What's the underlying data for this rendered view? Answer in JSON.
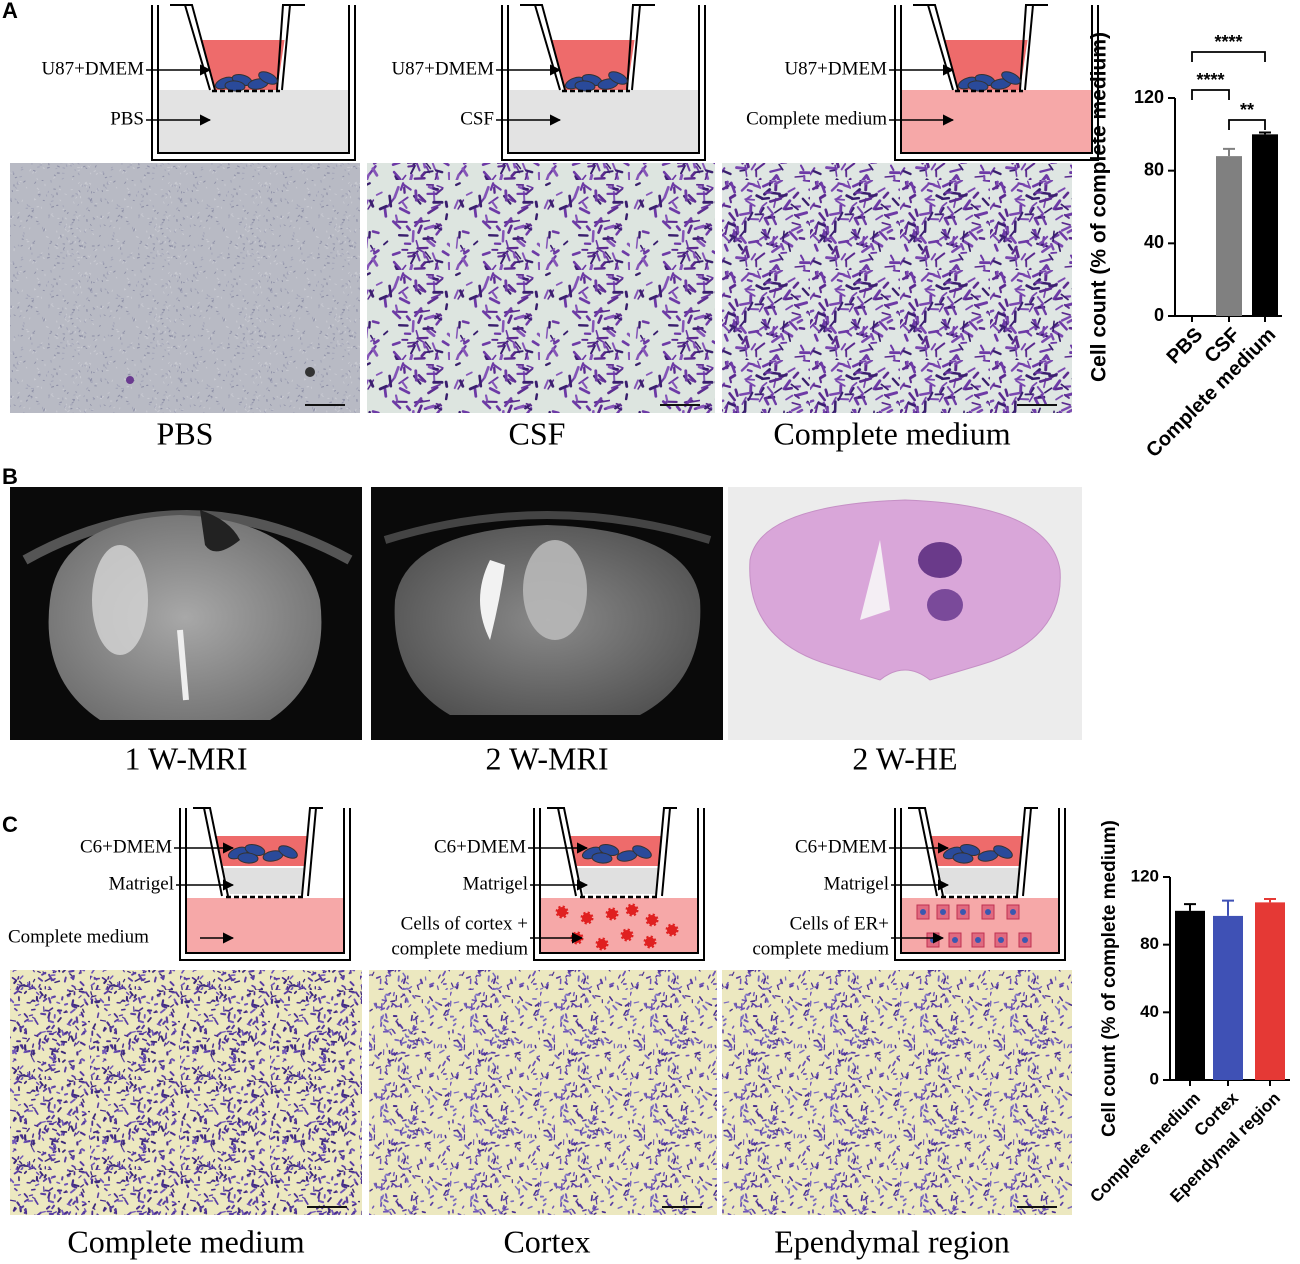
{
  "panels": [
    {
      "letter": "A",
      "diagrams": [
        {
          "top": "U87+DMEM",
          "bottom": [
            "PBS"
          ]
        },
        {
          "top": "U87+DMEM",
          "bottom": [
            "CSF"
          ]
        },
        {
          "top": "U87+DMEM",
          "bottom": [
            "Complete medium"
          ]
        }
      ],
      "captions": [
        "PBS",
        "CSF",
        "Complete medium"
      ]
    },
    {
      "letter": "B",
      "captions": [
        "1 W-MRI",
        "2 W-MRI",
        "2 W-HE"
      ]
    },
    {
      "letter": "C",
      "diagrams": [
        {
          "top": "C6+DMEM",
          "middle": "Matrigel",
          "bottom": [
            "Complete medium"
          ]
        },
        {
          "top": "C6+DMEM",
          "middle": "Matrigel",
          "bottom": [
            "Cells of cortex +",
            "complete medium"
          ]
        },
        {
          "top": "C6+DMEM",
          "middle": "Matrigel",
          "bottom": [
            "Cells of ER+",
            "complete medium"
          ]
        }
      ],
      "captions": [
        "Complete medium",
        "Cortex",
        "Ependymal region"
      ]
    }
  ],
  "chart_data": [
    {
      "type": "bar",
      "y_label": "Cell count (% of complete medium)",
      "categories": [
        "PBS",
        "CSF",
        "Complete medium"
      ],
      "values": [
        0,
        88,
        100
      ],
      "errors": [
        0,
        4,
        1
      ],
      "colors": [
        "#808080",
        "#808080",
        "#000000"
      ],
      "ylim": [
        0,
        120
      ],
      "yticks": [
        0,
        40,
        80,
        120
      ],
      "annotations": [
        {
          "text": "****",
          "between": [
            0,
            2
          ]
        },
        {
          "text": "****",
          "between": [
            0,
            1
          ]
        },
        {
          "text": "**",
          "between": [
            1,
            2
          ]
        }
      ]
    },
    {
      "type": "bar",
      "y_label": "Cell count (% of complete medium)",
      "categories": [
        "Complete medium",
        "Cortex",
        "Ependymal region"
      ],
      "values": [
        100,
        97,
        105
      ],
      "errors": [
        4,
        9,
        2
      ],
      "colors": [
        "#000000",
        "#3f51b5",
        "#e53935"
      ],
      "ylim": [
        0,
        120
      ],
      "yticks": [
        0,
        40,
        80,
        120
      ]
    }
  ]
}
